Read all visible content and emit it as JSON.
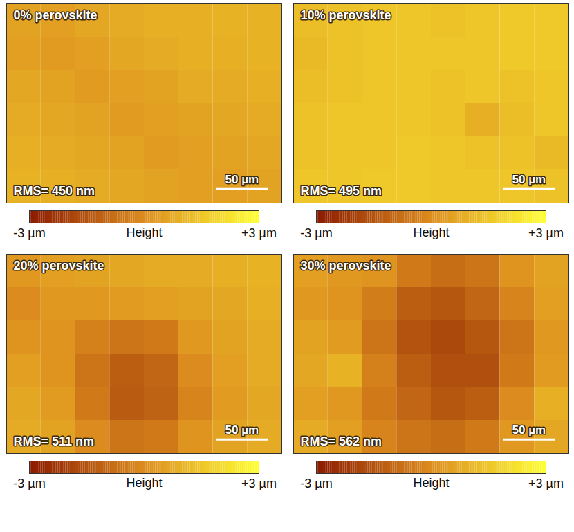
{
  "chart_data": [
    {
      "type": "heatmap",
      "title": "0% perovskite",
      "annotation": "RMS= 450 nm",
      "tick_labels": false,
      "xlim": [
        0,
        263
      ],
      "ylim": [
        0,
        195
      ],
      "scale_bar": {
        "value": 50,
        "label": "50 µm"
      },
      "cells": [
        [
          0.6,
          0.5,
          0.7,
          0.8,
          0.9,
          0.9,
          1.0,
          1.0
        ],
        [
          0.5,
          0.4,
          0.5,
          0.7,
          0.8,
          0.9,
          0.9,
          1.0
        ],
        [
          0.7,
          0.6,
          0.4,
          0.5,
          0.6,
          0.8,
          0.8,
          0.9
        ],
        [
          0.8,
          0.7,
          0.6,
          0.4,
          0.5,
          0.6,
          0.7,
          0.8
        ],
        [
          0.9,
          0.8,
          0.7,
          0.6,
          0.4,
          0.5,
          0.6,
          0.7
        ],
        [
          1.0,
          0.9,
          0.8,
          0.7,
          0.6,
          0.5,
          0.5,
          0.6
        ]
      ],
      "colorbar": {
        "label": "Height",
        "range": [
          -3,
          3
        ],
        "ticks": [
          {
            "value": -3,
            "label": "-3 µm"
          },
          {
            "value": 3,
            "label": "+3 µm"
          }
        ],
        "colors": [
          "#8b1a00",
          "#dc8c1e",
          "#ffff33"
        ]
      }
    },
    {
      "type": "heatmap",
      "title": "10% perovskite",
      "annotation": "RMS= 495 nm",
      "tick_labels": false,
      "xlim": [
        0,
        263
      ],
      "ylim": [
        0,
        195
      ],
      "scale_bar": {
        "value": 50,
        "label": "50 µm"
      },
      "cells": [
        [
          1.3,
          1.4,
          1.5,
          1.5,
          1.4,
          1.5,
          1.6,
          1.6
        ],
        [
          1.2,
          1.4,
          1.5,
          1.5,
          1.5,
          1.5,
          1.6,
          1.6
        ],
        [
          1.3,
          1.4,
          1.5,
          1.5,
          1.4,
          1.5,
          1.4,
          1.5
        ],
        [
          1.4,
          1.5,
          1.5,
          1.5,
          1.4,
          0.9,
          1.3,
          1.5
        ],
        [
          1.4,
          1.5,
          1.5,
          1.6,
          1.5,
          1.4,
          1.4,
          1.2
        ],
        [
          1.5,
          1.5,
          1.6,
          1.6,
          1.5,
          1.5,
          1.5,
          1.4
        ]
      ],
      "colorbar": {
        "label": "Height",
        "range": [
          -3,
          3
        ],
        "ticks": [
          {
            "value": -3,
            "label": "-3 µm"
          },
          {
            "value": 3,
            "label": "+3 µm"
          }
        ],
        "colors": [
          "#8b1a00",
          "#dc8c1e",
          "#ffff33"
        ]
      }
    },
    {
      "type": "heatmap",
      "title": "20% perovskite",
      "annotation": "RMS= 511 nm",
      "tick_labels": false,
      "xlim": [
        0,
        263
      ],
      "ylim": [
        0,
        195
      ],
      "scale_bar": {
        "value": 50,
        "label": "50 µm"
      },
      "cells": [
        [
          0.3,
          0.5,
          0.6,
          0.7,
          0.8,
          0.8,
          0.9,
          1.0
        ],
        [
          0.0,
          0.3,
          0.3,
          0.4,
          0.5,
          0.6,
          0.7,
          0.9
        ],
        [
          0.2,
          0.2,
          -0.3,
          -0.6,
          -0.5,
          0.3,
          0.6,
          0.8
        ],
        [
          0.5,
          0.2,
          -0.6,
          -1.2,
          -1.0,
          0.0,
          0.5,
          0.8
        ],
        [
          0.7,
          0.4,
          -0.5,
          -1.3,
          -1.1,
          -0.2,
          0.4,
          0.7
        ],
        [
          0.8,
          0.6,
          0.0,
          -0.6,
          -0.5,
          0.2,
          0.6,
          0.8
        ]
      ],
      "colorbar": {
        "label": "Height",
        "range": [
          -3,
          3
        ],
        "ticks": [
          {
            "value": -3,
            "label": "-3 µm"
          },
          {
            "value": 3,
            "label": "+3 µm"
          }
        ],
        "colors": [
          "#8b1a00",
          "#dc8c1e",
          "#ffff33"
        ]
      }
    },
    {
      "type": "heatmap",
      "title": "30% perovskite",
      "annotation": "RMS= 562 nm",
      "tick_labels": false,
      "xlim": [
        0,
        263
      ],
      "ylim": [
        0,
        195
      ],
      "scale_bar": {
        "value": 50,
        "label": "50 µm"
      },
      "cells": [
        [
          0.5,
          0.3,
          0.2,
          -0.5,
          -0.8,
          -0.6,
          0.2,
          0.6
        ],
        [
          0.3,
          0.2,
          -0.4,
          -1.2,
          -1.4,
          -1.0,
          -0.2,
          0.5
        ],
        [
          0.6,
          0.4,
          -0.6,
          -1.5,
          -1.8,
          -1.4,
          -0.6,
          0.3
        ],
        [
          0.7,
          1.0,
          -0.3,
          -1.2,
          -1.6,
          -1.6,
          -0.5,
          0.4
        ],
        [
          0.5,
          0.3,
          -0.5,
          -1.0,
          -1.4,
          -1.2,
          0.0,
          0.9
        ],
        [
          0.8,
          0.5,
          -0.2,
          -0.6,
          -0.8,
          -0.5,
          0.3,
          0.7
        ]
      ],
      "colorbar": {
        "label": "Height",
        "range": [
          -3,
          3
        ],
        "ticks": [
          {
            "value": -3,
            "label": "-3 µm"
          },
          {
            "value": 3,
            "label": "+3 µm"
          }
        ],
        "colors": [
          "#8b1a00",
          "#dc8c1e",
          "#ffff33"
        ]
      }
    }
  ]
}
